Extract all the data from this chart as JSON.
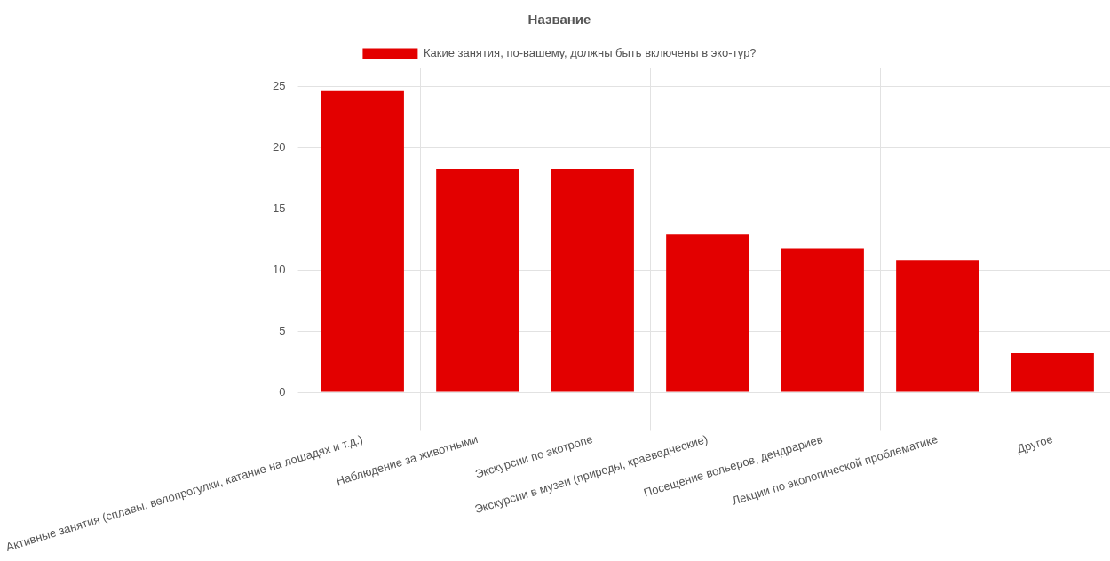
{
  "chart_data": {
    "type": "bar",
    "title": "Название",
    "categories": [
      "Активные занятия (сплавы, велопрогулки, катание на лошадях и т.д.)",
      "Наблюдение за животными",
      "Экскурсии по экотропе",
      "Экскурсии в музеи (природы, краеведческие)",
      "Посещение вольеров, дендрариев",
      "Лекции по экологической проблематике",
      "Другое"
    ],
    "series": [
      {
        "name": "Какие занятия, по-вашему, должны быть включены в эко-тур?",
        "color": "#e30000",
        "values": [
          24.7,
          18.3,
          18.3,
          12.9,
          11.8,
          10.8,
          3.2
        ]
      }
    ],
    "ylim": [
      -2.5,
      26.5
    ],
    "yticks": [
      0,
      5,
      10,
      15,
      20,
      25
    ],
    "grid": true,
    "legend": "top"
  }
}
